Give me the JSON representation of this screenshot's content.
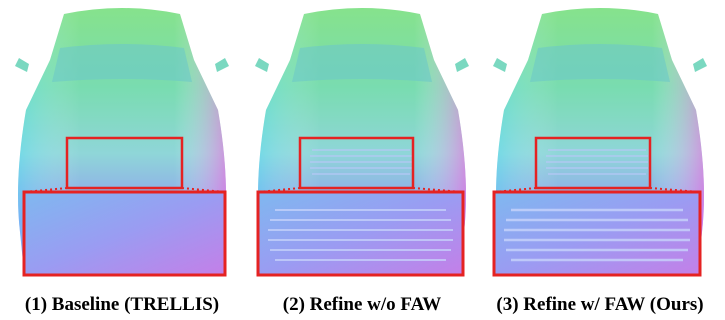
{
  "captions": [
    "(1) Baseline (TRELLIS)",
    "(2) Refine w/o FAW",
    "(3) Refine w/ FAW (Ours)"
  ]
}
